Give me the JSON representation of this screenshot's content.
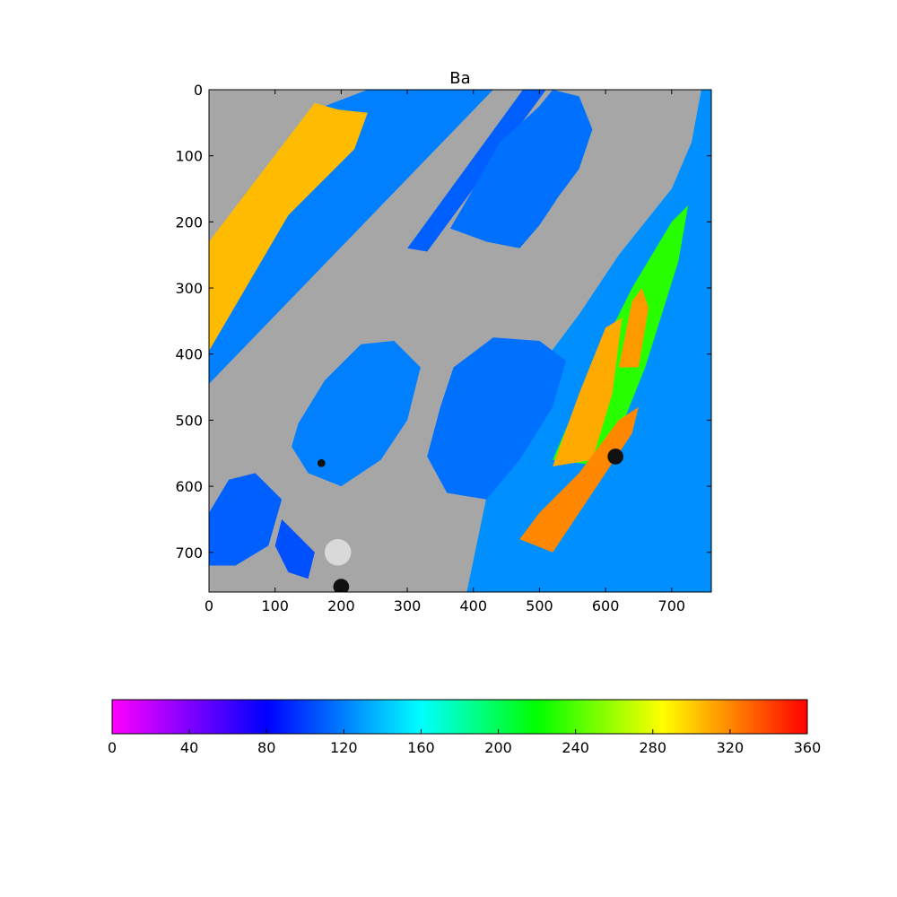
{
  "chart_data": [
    {
      "type": "heatmap",
      "title": "Ba",
      "xlabel": "",
      "ylabel": "",
      "xlim": [
        0,
        760
      ],
      "ylim": [
        760,
        0
      ],
      "x_ticks": [
        "0",
        "100",
        "200",
        "300",
        "400",
        "500",
        "600",
        "700"
      ],
      "y_ticks": [
        "0",
        "100",
        "200",
        "300",
        "400",
        "500",
        "600",
        "700"
      ],
      "background_color": "#a6a6a6",
      "regions": [
        {
          "name": "upper-left lath outer",
          "level": 120,
          "points": [
            [
              0,
              235
            ],
            [
              175,
              25
            ],
            [
              240,
              0
            ],
            [
              430,
              0
            ],
            [
              0,
              445
            ]
          ]
        },
        {
          "name": "upper-left lath core",
          "level": 305,
          "points": [
            [
              0,
              230
            ],
            [
              160,
              20
            ],
            [
              195,
              30
            ],
            [
              240,
              35
            ],
            [
              220,
              90
            ],
            [
              120,
              190
            ],
            [
              0,
              395
            ]
          ]
        },
        {
          "name": "upper-left thin band",
          "level": 110,
          "points": [
            [
              300,
              240
            ],
            [
              475,
              0
            ],
            [
              510,
              0
            ],
            [
              330,
              245
            ]
          ]
        },
        {
          "name": "top cluster",
          "level": 115,
          "points": [
            [
              365,
              210
            ],
            [
              400,
              150
            ],
            [
              440,
              80
            ],
            [
              500,
              25
            ],
            [
              520,
              0
            ],
            [
              560,
              10
            ],
            [
              580,
              60
            ],
            [
              560,
              120
            ],
            [
              530,
              160
            ],
            [
              500,
              205
            ],
            [
              470,
              240
            ],
            [
              420,
              230
            ]
          ]
        },
        {
          "name": "right fan outer",
          "level": 125,
          "points": [
            [
              390,
              760
            ],
            [
              440,
              520
            ],
            [
              500,
              420
            ],
            [
              560,
              340
            ],
            [
              620,
              250
            ],
            [
              660,
              200
            ],
            [
              700,
              150
            ],
            [
              730,
              80
            ],
            [
              745,
              0
            ],
            [
              760,
              0
            ],
            [
              760,
              760
            ]
          ]
        },
        {
          "name": "right fan yellow band",
          "level": 230,
          "points": [
            [
              520,
              560
            ],
            [
              580,
              420
            ],
            [
              640,
              300
            ],
            [
              700,
              200
            ],
            [
              725,
              175
            ],
            [
              710,
              260
            ],
            [
              660,
              420
            ],
            [
              600,
              570
            ]
          ]
        },
        {
          "name": "right fan orange core",
          "level": 310,
          "points": [
            [
              520,
              570
            ],
            [
              560,
              460
            ],
            [
              600,
              360
            ],
            [
              625,
              345
            ],
            [
              610,
              460
            ],
            [
              580,
              560
            ]
          ]
        },
        {
          "name": "right fan orange strip",
          "level": 315,
          "points": [
            [
              620,
              420
            ],
            [
              640,
              320
            ],
            [
              655,
              300
            ],
            [
              665,
              330
            ],
            [
              650,
              420
            ]
          ]
        },
        {
          "name": "diagonal orange lath",
          "level": 320,
          "points": [
            [
              470,
              680
            ],
            [
              500,
              640
            ],
            [
              560,
              580
            ],
            [
              620,
              500
            ],
            [
              650,
              480
            ],
            [
              640,
              520
            ],
            [
              580,
              610
            ],
            [
              520,
              700
            ]
          ]
        },
        {
          "name": "middle cluster",
          "level": 120,
          "points": [
            [
              135,
              505
            ],
            [
              175,
              440
            ],
            [
              230,
              385
            ],
            [
              280,
              380
            ],
            [
              320,
              420
            ],
            [
              300,
              500
            ],
            [
              260,
              560
            ],
            [
              200,
              600
            ],
            [
              150,
              580
            ],
            [
              125,
              540
            ]
          ]
        },
        {
          "name": "middle-right cluster",
          "level": 115,
          "points": [
            [
              330,
              555
            ],
            [
              350,
              480
            ],
            [
              370,
              420
            ],
            [
              430,
              375
            ],
            [
              500,
              380
            ],
            [
              540,
              410
            ],
            [
              520,
              480
            ],
            [
              470,
              560
            ],
            [
              420,
              620
            ],
            [
              360,
              610
            ]
          ]
        },
        {
          "name": "lower-left patch",
          "level": 110,
          "points": [
            [
              0,
              640
            ],
            [
              30,
              590
            ],
            [
              70,
              580
            ],
            [
              110,
              620
            ],
            [
              90,
              690
            ],
            [
              40,
              720
            ],
            [
              0,
              720
            ]
          ]
        },
        {
          "name": "lower-left strip",
          "level": 105,
          "points": [
            [
              100,
              690
            ],
            [
              110,
              650
            ],
            [
              160,
              700
            ],
            [
              150,
              740
            ],
            [
              120,
              730
            ]
          ]
        }
      ],
      "dark_spots": [
        {
          "x": 615,
          "y": 555,
          "r": 12
        },
        {
          "x": 200,
          "y": 752,
          "r": 12
        },
        {
          "x": 170,
          "y": 565,
          "r": 6
        }
      ],
      "light_spots": [
        {
          "x": 195,
          "y": 700,
          "r": 20
        }
      ],
      "colorbar": {
        "orientation": "horizontal",
        "range": [
          0,
          360
        ],
        "ticks": [
          "0",
          "40",
          "80",
          "120",
          "160",
          "200",
          "240",
          "280",
          "320",
          "360"
        ],
        "stops": [
          {
            "v": 0,
            "color": "#ff00ff"
          },
          {
            "v": 80,
            "color": "#0000ff"
          },
          {
            "v": 160,
            "color": "#00ffff"
          },
          {
            "v": 220,
            "color": "#00ff00"
          },
          {
            "v": 285,
            "color": "#ffff00"
          },
          {
            "v": 360,
            "color": "#ff0000"
          }
        ]
      }
    }
  ]
}
